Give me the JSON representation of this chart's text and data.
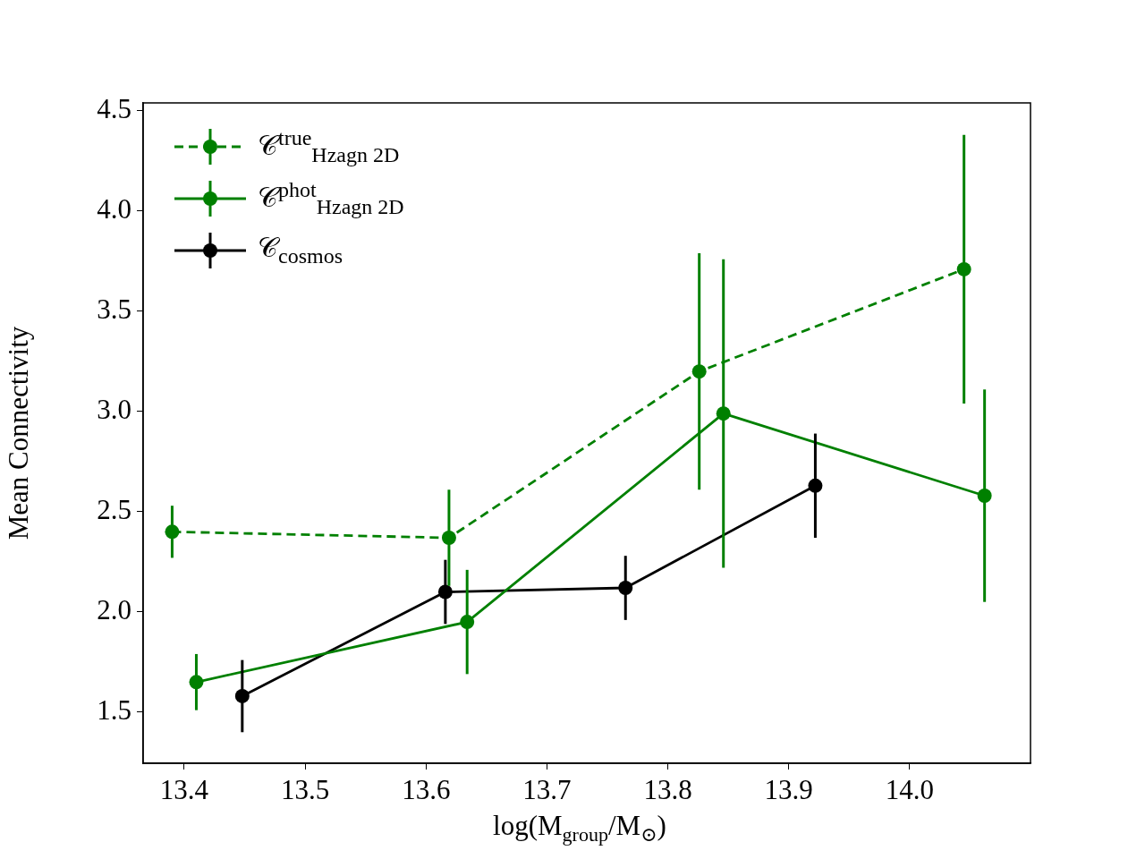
{
  "chart_data": {
    "type": "line",
    "xlabel": "log(M$_{group}$/M$_{⊙}$)",
    "ylabel": "Mean Connectivity",
    "xlim": [
      13.366,
      14.1
    ],
    "ylim": [
      1.245,
      4.54
    ],
    "xticks": [
      13.4,
      13.5,
      13.6,
      13.7,
      13.8,
      13.9,
      {
        "value": 14,
        "label": "14.0"
      }
    ],
    "yticks": [
      1.5,
      {
        "value": 2,
        "label": "2.0"
      },
      2.5,
      {
        "value": 3,
        "label": "3.0"
      },
      3.5,
      {
        "value": 4,
        "label": "4.0"
      },
      4.5
    ],
    "grid": false,
    "legend": "top left",
    "marker": "circle",
    "series": [
      {
        "name": "𝒞$^{true}$$_{Hzagn 2D}$",
        "color": "#008000",
        "line_style": "dashed",
        "x": [
          13.39,
          13.619,
          13.826,
          14.045
        ],
        "values": [
          2.4,
          2.37,
          3.2,
          3.71
        ],
        "errors": [
          0.13,
          0.24,
          0.59,
          0.67
        ]
      },
      {
        "name": "𝒞$^{phot}$$_{Hzagn 2D}$",
        "color": "#008000",
        "line_style": "solid",
        "x": [
          13.41,
          13.634,
          13.846,
          14.062
        ],
        "values": [
          1.65,
          1.95,
          2.99,
          2.58
        ],
        "errors": [
          0.14,
          0.26,
          0.77,
          0.53
        ]
      },
      {
        "name": "𝒞$_{cosmos}$",
        "color": "#000000",
        "line_style": "solid",
        "x": [
          13.448,
          13.616,
          13.765,
          13.922
        ],
        "values": [
          1.58,
          2.1,
          2.12,
          2.63
        ],
        "errors": [
          0.18,
          0.16,
          0.16,
          0.26
        ]
      }
    ]
  }
}
